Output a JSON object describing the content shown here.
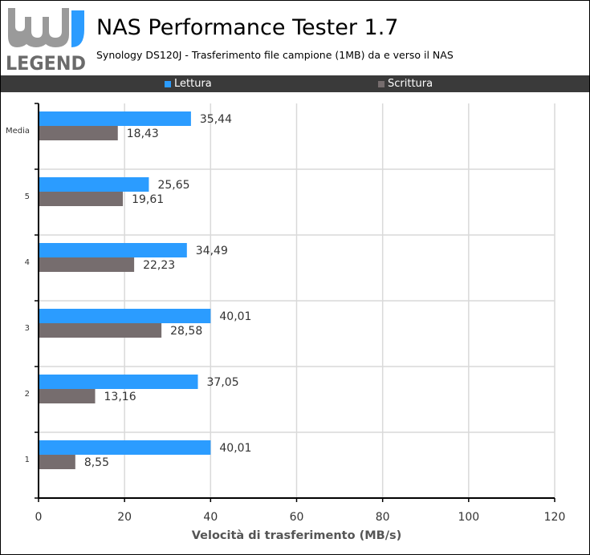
{
  "header": {
    "logo_top": "hw",
    "logo_bottom": "LEGEND",
    "title": "NAS Performance Tester 1.7",
    "subtitle": "Synology DS120J - Trasferimento file campione (1MB) da e verso il NAS"
  },
  "colors": {
    "lettura": "#2b9cff",
    "scrittura": "#766d6e",
    "legend_bg": "#3a3a3a",
    "grid": "#d9d9d9"
  },
  "chart_data": {
    "type": "bar",
    "orientation": "horizontal",
    "title": "NAS Performance Tester 1.7",
    "subtitle": "Synology DS120J - Trasferimento file campione (1MB) da e verso il NAS",
    "xlabel": "Velocità di trasferimento (MB/s)",
    "ylabel": "",
    "xlim": [
      0,
      120
    ],
    "xticks": [
      0,
      20,
      40,
      60,
      80,
      100,
      120
    ],
    "grid": true,
    "legend_position": "top",
    "categories": [
      "Media",
      "5",
      "4",
      "3",
      "2",
      "1"
    ],
    "series": [
      {
        "name": "Lettura",
        "values": [
          35.44,
          25.65,
          34.49,
          40.01,
          37.05,
          40.01
        ],
        "labels": [
          "35,44",
          "25,65",
          "34,49",
          "40,01",
          "37,05",
          "40,01"
        ]
      },
      {
        "name": "Scrittura",
        "values": [
          18.43,
          19.61,
          22.23,
          28.58,
          13.16,
          8.55
        ],
        "labels": [
          "18,43",
          "19,61",
          "22,23",
          "28,58",
          "13,16",
          "8,55"
        ]
      }
    ]
  }
}
